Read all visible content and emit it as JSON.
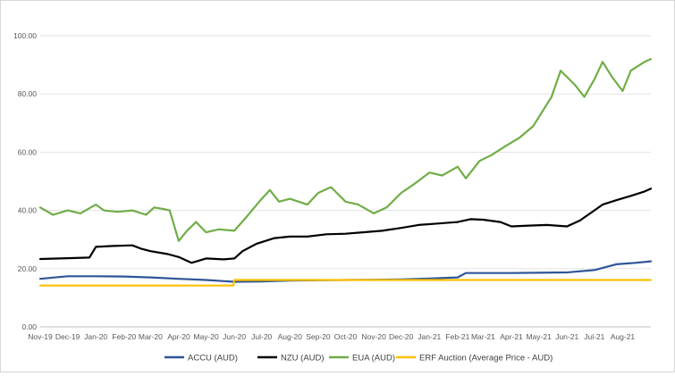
{
  "chart_data": {
    "type": "line",
    "title": "",
    "xlabel": "",
    "ylabel": "",
    "ylim": [
      0,
      100
    ],
    "yticks": [
      0,
      20,
      40,
      60,
      80,
      100
    ],
    "ytick_labels": [
      "0.00",
      "20.00",
      "40.00",
      "60.00",
      "80.00",
      "100.00"
    ],
    "xlim": [
      "2019-11-01",
      "2021-09-01"
    ],
    "xtick_labels": [
      "Nov-19",
      "Dec-19",
      "Jan-20",
      "Feb-20",
      "Mar-20",
      "Apr-20",
      "May-20",
      "Jun-20",
      "Jul-20",
      "Aug-20",
      "Sep-20",
      "Oct-20",
      "Nov-20",
      "Dec-20",
      "Jan-21",
      "Feb-21",
      "Mar-21",
      "Apr-21",
      "May-21",
      "Jun-21",
      "Jul-21",
      "Aug-21"
    ],
    "grid": "horizontal",
    "legend_position": "bottom",
    "series": [
      {
        "name": "ACCU (AUD)",
        "color": "#2f5597",
        "x": [
          "2019-11-01",
          "2019-12-01",
          "2020-01-01",
          "2020-02-01",
          "2020-03-01",
          "2020-04-01",
          "2020-05-01",
          "2020-06-01",
          "2020-07-01",
          "2020-08-01",
          "2020-09-01",
          "2020-10-01",
          "2020-11-01",
          "2020-12-01",
          "2021-01-01",
          "2021-02-01",
          "2021-02-10",
          "2021-03-01",
          "2021-04-01",
          "2021-05-01",
          "2021-06-01",
          "2021-07-01",
          "2021-07-25",
          "2021-08-15",
          "2021-09-01"
        ],
        "y": [
          16.5,
          17.4,
          17.4,
          17.3,
          17.0,
          16.5,
          16.1,
          15.5,
          15.6,
          15.9,
          16.0,
          16.1,
          16.2,
          16.3,
          16.6,
          17.0,
          18.5,
          18.5,
          18.5,
          18.6,
          18.7,
          19.5,
          21.5,
          22.0,
          22.5
        ]
      },
      {
        "name": "NZU (AUD)",
        "color": "#000000",
        "x": [
          "2019-11-01",
          "2019-12-01",
          "2019-12-25",
          "2020-01-01",
          "2020-01-20",
          "2020-02-10",
          "2020-02-20",
          "2020-03-01",
          "2020-03-20",
          "2020-04-01",
          "2020-04-15",
          "2020-05-01",
          "2020-05-20",
          "2020-06-01",
          "2020-06-10",
          "2020-06-25",
          "2020-07-15",
          "2020-08-01",
          "2020-08-20",
          "2020-09-10",
          "2020-10-01",
          "2020-10-20",
          "2020-11-10",
          "2020-12-01",
          "2020-12-20",
          "2021-01-10",
          "2021-02-01",
          "2021-02-15",
          "2021-03-01",
          "2021-03-20",
          "2021-04-01",
          "2021-04-20",
          "2021-05-10",
          "2021-06-01",
          "2021-06-15",
          "2021-07-01",
          "2021-07-10",
          "2021-07-25",
          "2021-08-10",
          "2021-08-25",
          "2021-09-01"
        ],
        "y": [
          23.3,
          23.6,
          23.8,
          27.5,
          27.8,
          28.0,
          26.8,
          26.0,
          25.0,
          24.0,
          22.0,
          23.5,
          23.2,
          23.5,
          26.0,
          28.5,
          30.5,
          31.0,
          31.0,
          31.8,
          32.0,
          32.5,
          33.0,
          34.0,
          35.0,
          35.5,
          36.0,
          37.0,
          36.8,
          36.0,
          34.5,
          34.8,
          35.0,
          34.5,
          36.5,
          40.0,
          42.0,
          43.5,
          45.0,
          46.5,
          47.5
        ]
      },
      {
        "name": "EUA (AUD)",
        "color": "#70ad47",
        "x": [
          "2019-11-01",
          "2019-11-15",
          "2019-12-01",
          "2019-12-15",
          "2020-01-01",
          "2020-01-10",
          "2020-01-25",
          "2020-02-10",
          "2020-02-25",
          "2020-03-05",
          "2020-03-15",
          "2020-03-22",
          "2020-04-01",
          "2020-04-10",
          "2020-04-20",
          "2020-05-01",
          "2020-05-15",
          "2020-06-01",
          "2020-06-15",
          "2020-07-01",
          "2020-07-10",
          "2020-07-20",
          "2020-08-01",
          "2020-08-20",
          "2020-09-01",
          "2020-09-15",
          "2020-10-01",
          "2020-10-15",
          "2020-11-01",
          "2020-11-15",
          "2020-12-01",
          "2020-12-15",
          "2021-01-01",
          "2021-01-15",
          "2021-02-01",
          "2021-02-10",
          "2021-02-25",
          "2021-03-10",
          "2021-03-25",
          "2021-04-10",
          "2021-04-25",
          "2021-05-05",
          "2021-05-15",
          "2021-05-25",
          "2021-06-10",
          "2021-06-20",
          "2021-07-01",
          "2021-07-10",
          "2021-07-20",
          "2021-08-01",
          "2021-08-10",
          "2021-08-25",
          "2021-09-01"
        ],
        "y": [
          41.0,
          38.5,
          40.0,
          39.0,
          42.0,
          40.0,
          39.5,
          40.0,
          38.5,
          41.0,
          40.5,
          40.0,
          29.5,
          33.0,
          36.0,
          32.5,
          33.5,
          33.0,
          38.0,
          44.0,
          47.0,
          43.0,
          44.0,
          42.0,
          46.0,
          48.0,
          43.0,
          42.0,
          39.0,
          41.0,
          46.0,
          49.0,
          53.0,
          52.0,
          55.0,
          51.0,
          57.0,
          59.0,
          62.0,
          65.0,
          69.0,
          74.0,
          79.0,
          88.0,
          83.0,
          79.0,
          85.0,
          91.0,
          86.0,
          81.0,
          88.0,
          91.0,
          92.0
        ]
      },
      {
        "name": "ERF Auction (Average Price - AUD)",
        "color": "#ffc000",
        "x": [
          "2019-11-01",
          "2020-05-31",
          "2020-06-01",
          "2021-09-01"
        ],
        "y": [
          14.2,
          14.2,
          16.1,
          16.1
        ]
      }
    ]
  }
}
